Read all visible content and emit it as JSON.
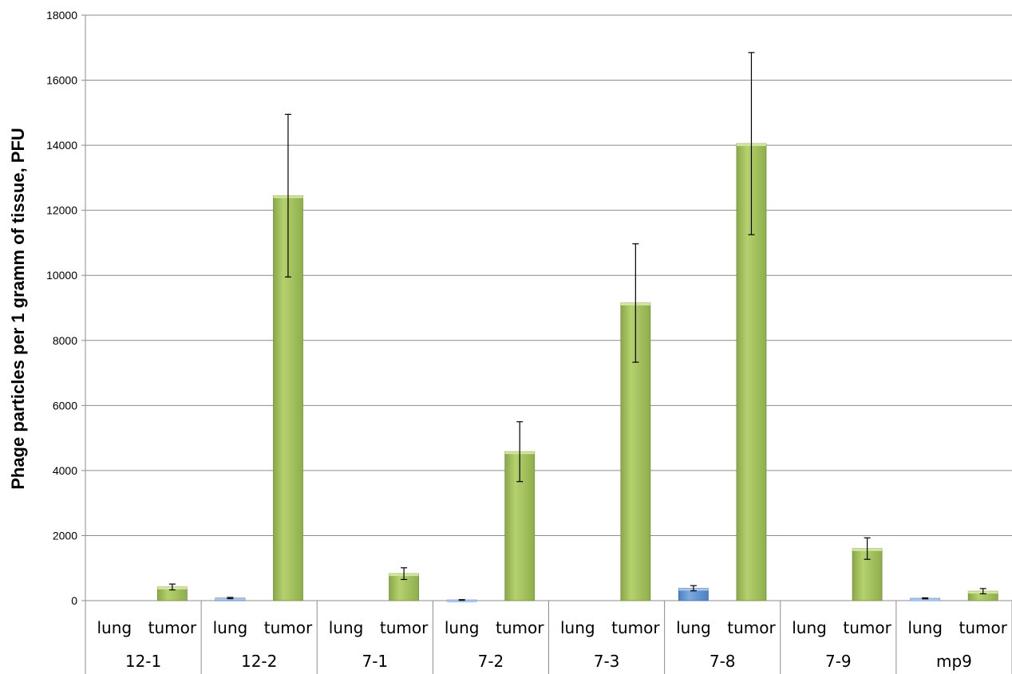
{
  "chart_data": {
    "type": "bar",
    "ylabel": "Phage particles per 1 gramm of tissue, PFU",
    "ylim": [
      0,
      18000
    ],
    "yticks": [
      0,
      2000,
      4000,
      6000,
      8000,
      10000,
      12000,
      14000,
      16000,
      18000
    ],
    "grid": true,
    "groups": [
      "12-1",
      "12-2",
      "7-1",
      "7-2",
      "7-3",
      "7-8",
      "7-9",
      "mp9"
    ],
    "subcategories": [
      "lung",
      "tumor"
    ],
    "colors": {
      "lung": "#5b8fd0",
      "tumor": "#9bbb59"
    },
    "series": [
      {
        "subcategory": "lung",
        "values": [
          0,
          80,
          0,
          20,
          0,
          380,
          0,
          70
        ],
        "error": [
          0,
          20,
          0,
          10,
          0,
          80,
          0,
          15
        ]
      },
      {
        "subcategory": "tumor",
        "values": [
          420,
          12450,
          830,
          4580,
          9150,
          14050,
          1600,
          290
        ],
        "error": [
          90,
          2500,
          180,
          920,
          1820,
          2800,
          330,
          80
        ]
      }
    ]
  }
}
